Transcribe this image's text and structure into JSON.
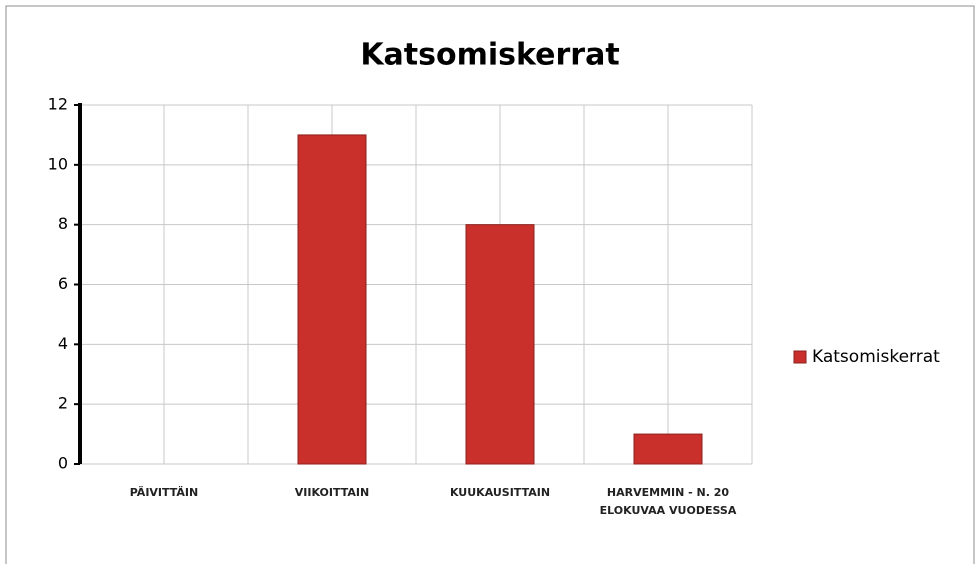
{
  "chart_data": {
    "type": "bar",
    "title": "Katsomiskerrat",
    "categories": [
      "PÄIVITTÄIN",
      "VIIKOITTAIN",
      "KUUKAUSITTAIN",
      "HARVEMMIN - N. 20 ELOKUVAA VUODESSA"
    ],
    "series": [
      {
        "name": "Katsomiskerrat",
        "color": "#c9302c",
        "values": [
          0,
          11,
          8,
          1
        ]
      }
    ],
    "ylim": [
      0,
      12
    ],
    "yticks": [
      0,
      2,
      4,
      6,
      8,
      10,
      12
    ],
    "grid": true,
    "legend": "right"
  }
}
